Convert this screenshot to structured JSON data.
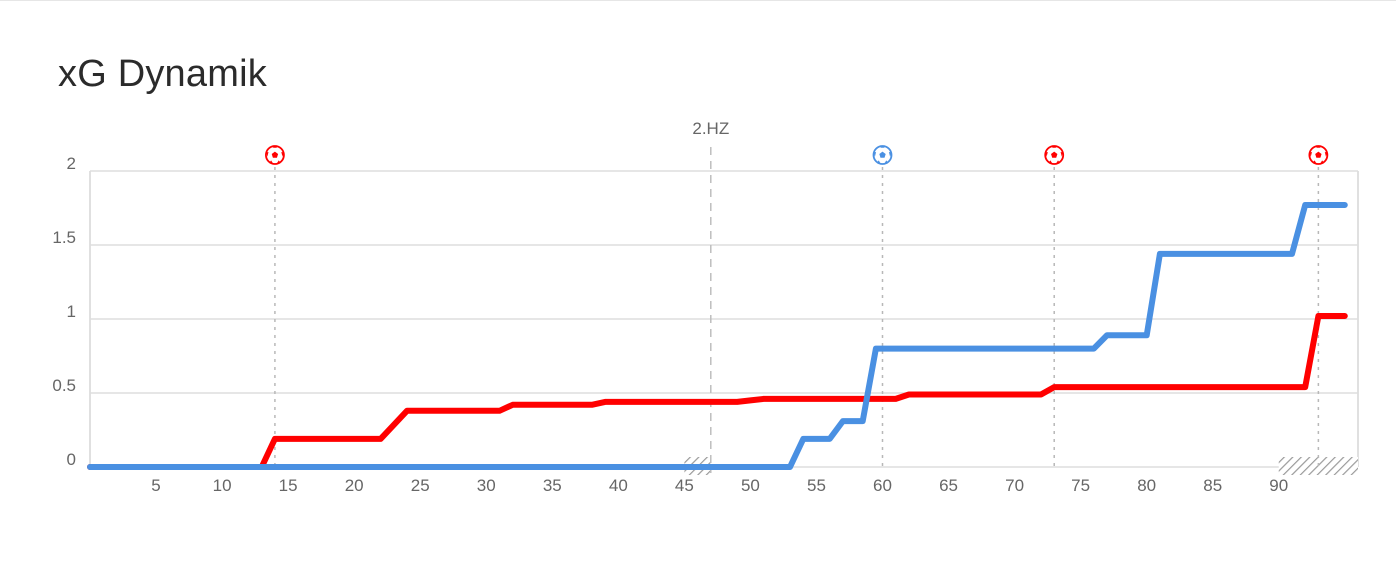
{
  "title": "xG Dynamik",
  "colors": {
    "home": "#ff0000",
    "away": "#4a90e2",
    "grid": "#dddddd",
    "marker_line": "#b8b8b8"
  },
  "chart_data": {
    "type": "line",
    "title": "xG Dynamik",
    "xlabel": "",
    "ylabel": "",
    "xlim": [
      0,
      96
    ],
    "ylim": [
      0,
      2
    ],
    "grid": true,
    "x_ticks": [
      5,
      10,
      15,
      20,
      25,
      30,
      35,
      40,
      45,
      50,
      55,
      60,
      65,
      70,
      75,
      80,
      85,
      90
    ],
    "y_ticks": [
      {
        "value": 0,
        "label": "0"
      },
      {
        "value": 0.5,
        "label": "0.5"
      },
      {
        "value": 1,
        "label": "1"
      },
      {
        "value": 1.5,
        "label": "1.5"
      },
      {
        "value": 2,
        "label": "2"
      }
    ],
    "period_marker": {
      "x": 47,
      "label": "2.HZ"
    },
    "stoppage_time": [
      {
        "from": 45,
        "to": 47
      },
      {
        "from": 90,
        "to": 96
      }
    ],
    "goals": [
      {
        "minute": 14,
        "team": "home",
        "icon": "football-icon"
      },
      {
        "minute": 60,
        "team": "away",
        "icon": "football-icon"
      },
      {
        "minute": 73,
        "team": "home",
        "icon": "football-icon"
      },
      {
        "minute": 93,
        "team": "home",
        "icon": "football-icon"
      }
    ],
    "series": [
      {
        "team": "home",
        "color": "#ff0000",
        "points": [
          [
            0,
            0
          ],
          [
            13,
            0
          ],
          [
            14,
            0.19
          ],
          [
            22,
            0.19
          ],
          [
            24,
            0.38
          ],
          [
            31,
            0.38
          ],
          [
            32,
            0.42
          ],
          [
            38,
            0.42
          ],
          [
            39,
            0.44
          ],
          [
            49,
            0.44
          ],
          [
            50,
            0.45
          ],
          [
            51,
            0.46
          ],
          [
            61,
            0.46
          ],
          [
            62,
            0.49
          ],
          [
            72,
            0.49
          ],
          [
            73,
            0.54
          ],
          [
            92,
            0.54
          ],
          [
            93,
            1.02
          ],
          [
            95,
            1.02
          ]
        ]
      },
      {
        "team": "away",
        "color": "#4a90e2",
        "points": [
          [
            0,
            0
          ],
          [
            53,
            0
          ],
          [
            54,
            0.19
          ],
          [
            56,
            0.19
          ],
          [
            57,
            0.31
          ],
          [
            58.5,
            0.31
          ],
          [
            59.5,
            0.8
          ],
          [
            76,
            0.8
          ],
          [
            77,
            0.89
          ],
          [
            80,
            0.89
          ],
          [
            81,
            1.44
          ],
          [
            91,
            1.44
          ],
          [
            92,
            1.77
          ],
          [
            95,
            1.77
          ]
        ]
      }
    ]
  }
}
